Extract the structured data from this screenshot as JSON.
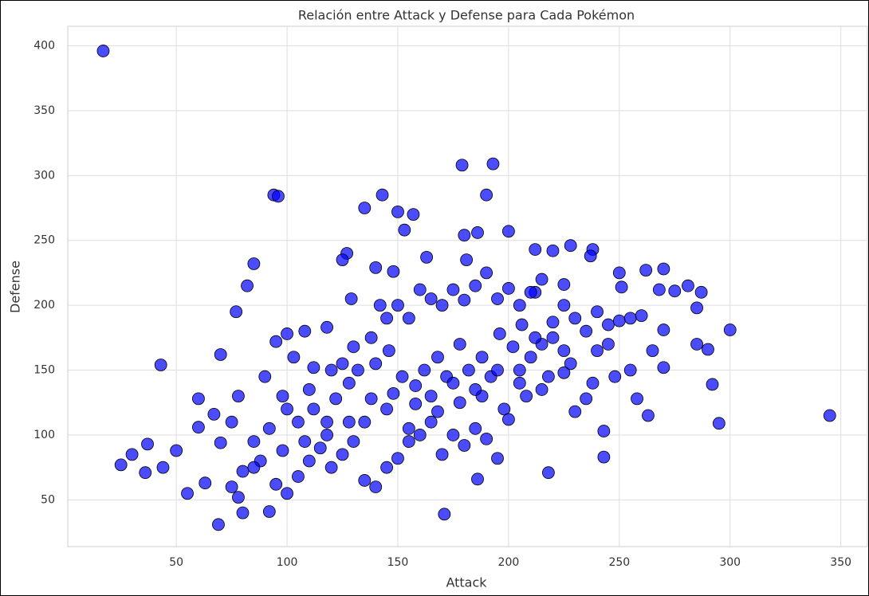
{
  "chart_data": {
    "type": "scatter",
    "title": "Relación entre Attack y Defense para Cada Pokémon",
    "x_label": "Attack",
    "y_label": "Defense",
    "xlim": [
      1,
      362
    ],
    "ylim": [
      14,
      415
    ],
    "xticks": [
      50,
      100,
      150,
      200,
      250,
      300,
      350
    ],
    "yticks": [
      50,
      100,
      150,
      200,
      250,
      300,
      350,
      400
    ],
    "grid": true,
    "series": [
      {
        "color": "#0000ff",
        "x": [
          17,
          179,
          193,
          94,
          96,
          143,
          190,
          135,
          150,
          157,
          153,
          200,
          186,
          180,
          228,
          212,
          220,
          238,
          127,
          125,
          85,
          163,
          181,
          237,
          262,
          270,
          250,
          212,
          140,
          148,
          82,
          225,
          251,
          281,
          275,
          268,
          287,
          77,
          129,
          285,
          300,
          270,
          43,
          70,
          345,
          295,
          292,
          290,
          285,
          263,
          243,
          243,
          218,
          186,
          171,
          69,
          80,
          92,
          55,
          63,
          30,
          25,
          36,
          37,
          44,
          50,
          60,
          60,
          67,
          70,
          75,
          78,
          90,
          95,
          100,
          103,
          108,
          112,
          118,
          120,
          125,
          130,
          138,
          142,
          145,
          150,
          155,
          160,
          165,
          170,
          175,
          180,
          185,
          190,
          195,
          200,
          205,
          210,
          215,
          220,
          225,
          230,
          235,
          240,
          245,
          250,
          255,
          260,
          265,
          270,
          258,
          248,
          238,
          228,
          218,
          208,
          198,
          188,
          178,
          168,
          158,
          148,
          138,
          128,
          118,
          108,
          98,
          88,
          80,
          75,
          78,
          85,
          95,
          100,
          105,
          110,
          115,
          120,
          125,
          130,
          135,
          140,
          145,
          150,
          155,
          160,
          165,
          170,
          175,
          180,
          185,
          190,
          195,
          200,
          205,
          210,
          215,
          220,
          225,
          230,
          235,
          240,
          112,
          118,
          122,
          128,
          132,
          140,
          146,
          152,
          158,
          162,
          168,
          172,
          178,
          182,
          188,
          192,
          196,
          202,
          206,
          212,
          100,
          105,
          92,
          98,
          85,
          110,
          135,
          145,
          155,
          165,
          175,
          185,
          195,
          205,
          215,
          225,
          245,
          255
        ],
        "values": [
          396,
          308,
          309,
          285,
          284,
          285,
          285,
          275,
          272,
          270,
          258,
          257,
          256,
          254,
          246,
          243,
          242,
          243,
          240,
          235,
          232,
          237,
          235,
          238,
          227,
          228,
          225,
          210,
          229,
          226,
          215,
          216,
          214,
          215,
          211,
          212,
          210,
          195,
          205,
          198,
          181,
          181,
          154,
          162,
          115,
          109,
          139,
          166,
          170,
          115,
          103,
          83,
          71,
          66,
          39,
          31,
          40,
          41,
          55,
          63,
          85,
          77,
          71,
          93,
          75,
          88,
          128,
          106,
          116,
          94,
          110,
          130,
          145,
          172,
          178,
          160,
          180,
          152,
          183,
          150,
          155,
          168,
          175,
          200,
          190,
          200,
          190,
          212,
          205,
          200,
          212,
          204,
          215,
          225,
          205,
          213,
          200,
          210,
          220,
          187,
          200,
          190,
          180,
          195,
          185,
          188,
          190,
          192,
          165,
          152,
          128,
          145,
          140,
          155,
          145,
          130,
          120,
          130,
          125,
          118,
          124,
          132,
          128,
          110,
          100,
          95,
          88,
          80,
          72,
          60,
          52,
          75,
          62,
          55,
          68,
          80,
          90,
          75,
          85,
          95,
          65,
          60,
          75,
          82,
          95,
          100,
          110,
          85,
          100,
          92,
          105,
          97,
          82,
          112,
          140,
          160,
          170,
          175,
          148,
          118,
          128,
          165,
          120,
          110,
          128,
          140,
          150,
          155,
          165,
          145,
          138,
          150,
          160,
          145,
          170,
          150,
          160,
          145,
          178,
          168,
          185,
          175,
          120,
          110,
          105,
          130,
          95,
          135,
          110,
          120,
          105,
          130,
          140,
          135,
          150,
          150,
          135,
          165,
          170,
          150
        ]
      }
    ]
  }
}
